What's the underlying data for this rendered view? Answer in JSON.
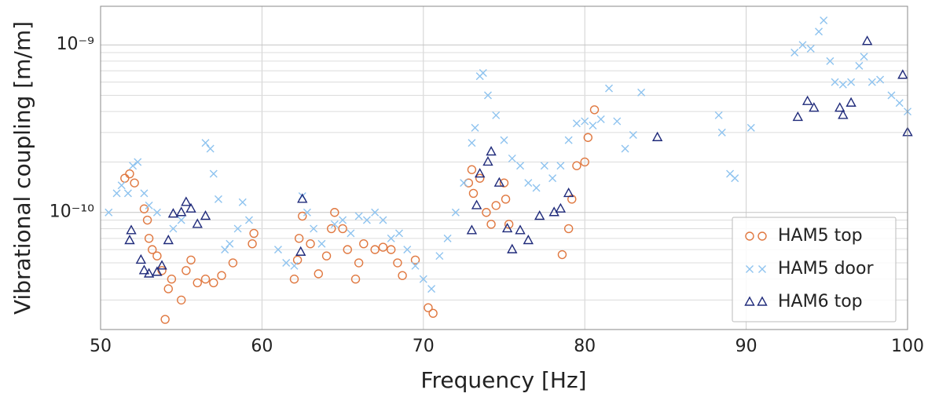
{
  "chart_data": {
    "type": "scatter",
    "xlabel": "Frequency [Hz]",
    "ylabel": "Vibrational coupling [m/m]",
    "xlim": [
      50,
      100
    ],
    "xticks": [
      50,
      60,
      70,
      80,
      90,
      100
    ],
    "ylim": [
      2e-11,
      1.7e-09
    ],
    "log_y": true,
    "yticks": [
      {
        "value": 1e-10,
        "label": "10⁻¹⁰"
      },
      {
        "value": 1e-09,
        "label": "10⁻⁹"
      }
    ],
    "yminorticks": [
      2e-11,
      3e-11,
      4e-11,
      5e-11,
      6e-11,
      7e-11,
      8e-11,
      9e-11,
      2e-10,
      3e-10,
      4e-10,
      5e-10,
      6e-10,
      7e-10,
      8e-10,
      9e-10
    ],
    "grid": true,
    "legend": "lower right",
    "series": [
      {
        "name": "HAM5 top",
        "color": "#e07840",
        "marker": "circle",
        "x": [
          51.5,
          51.8,
          52.1,
          52.7,
          52.9,
          53.0,
          53.2,
          53.5,
          53.8,
          54.0,
          54.2,
          54.4,
          55.0,
          55.3,
          55.6,
          56.0,
          56.5,
          57.0,
          57.5,
          58.2,
          59.4,
          59.5,
          62.0,
          62.2,
          62.3,
          62.5,
          63.0,
          63.5,
          64.0,
          64.3,
          64.5,
          65.0,
          65.3,
          65.8,
          66.0,
          66.3,
          67.0,
          67.5,
          68.0,
          68.4,
          68.7,
          69.5,
          70.3,
          70.6,
          72.8,
          73.0,
          73.1,
          73.5,
          73.9,
          74.2,
          74.5,
          75.0,
          75.1,
          75.3,
          78.6,
          79.0,
          79.2,
          79.5,
          80.0,
          80.2,
          80.6
        ],
        "values": [
          1.6e-10,
          1.7e-10,
          1.5e-10,
          1.05e-10,
          9e-11,
          7e-11,
          6e-11,
          5.5e-11,
          4.5e-11,
          2.3e-11,
          3.5e-11,
          4e-11,
          3e-11,
          4.5e-11,
          5.2e-11,
          3.8e-11,
          4e-11,
          3.8e-11,
          4.2e-11,
          5e-11,
          6.5e-11,
          7.5e-11,
          4e-11,
          5.2e-11,
          7e-11,
          9.5e-11,
          6.5e-11,
          4.3e-11,
          5.5e-11,
          8e-11,
          1e-10,
          8e-11,
          6e-11,
          4e-11,
          5e-11,
          6.5e-11,
          6e-11,
          6.2e-11,
          6e-11,
          5e-11,
          4.2e-11,
          5.2e-11,
          2.7e-11,
          2.5e-11,
          1.5e-10,
          1.8e-10,
          1.3e-10,
          1.6e-10,
          1e-10,
          8.5e-11,
          1.1e-10,
          1.5e-10,
          1.2e-10,
          8.5e-11,
          5.6e-11,
          8e-11,
          1.2e-10,
          1.9e-10,
          2e-10,
          2.8e-10,
          4.1e-10
        ]
      },
      {
        "name": "HAM5 door",
        "color": "#8ec3ef",
        "marker": "x",
        "x": [
          50.5,
          51.0,
          51.3,
          51.7,
          52.0,
          52.3,
          52.7,
          53.0,
          53.5,
          54.5,
          55.0,
          56.5,
          56.8,
          57.0,
          57.3,
          57.7,
          58.0,
          58.5,
          58.8,
          59.2,
          61.0,
          61.5,
          62.0,
          62.5,
          62.8,
          63.2,
          63.7,
          64.5,
          65.0,
          65.5,
          66.0,
          66.5,
          67.0,
          67.5,
          68.0,
          68.5,
          69.0,
          69.5,
          70.0,
          70.5,
          71.0,
          71.5,
          72.0,
          72.5,
          73.0,
          73.2,
          73.5,
          73.7,
          74.0,
          74.5,
          75.0,
          75.5,
          76.0,
          76.5,
          77.0,
          77.5,
          78.0,
          78.5,
          79.0,
          79.5,
          80.0,
          80.5,
          81.0,
          81.5,
          82.0,
          82.5,
          83.0,
          83.5,
          88.3,
          88.5,
          89.0,
          89.3,
          90.3,
          93.0,
          93.5,
          94.0,
          94.5,
          94.8,
          95.2,
          95.5,
          96.0,
          96.5,
          97.0,
          97.3,
          97.8,
          98.3,
          99.0,
          99.5,
          100.0
        ],
        "values": [
          1e-10,
          1.3e-10,
          1.45e-10,
          1.3e-10,
          1.9e-10,
          2e-10,
          1.3e-10,
          1.1e-10,
          1e-10,
          8e-11,
          9e-11,
          2.6e-10,
          2.4e-10,
          1.7e-10,
          1.2e-10,
          6e-11,
          6.5e-11,
          8e-11,
          1.15e-10,
          9e-11,
          6e-11,
          5e-11,
          4.8e-11,
          1.25e-10,
          1e-10,
          8e-11,
          6.5e-11,
          8.5e-11,
          9e-11,
          7.5e-11,
          9.5e-11,
          9e-11,
          1e-10,
          9e-11,
          7e-11,
          7.5e-11,
          6e-11,
          4.8e-11,
          4e-11,
          3.5e-11,
          5.5e-11,
          7e-11,
          1e-10,
          1.5e-10,
          2.6e-10,
          3.2e-10,
          6.5e-10,
          6.8e-10,
          5e-10,
          3.8e-10,
          2.7e-10,
          2.1e-10,
          1.9e-10,
          1.5e-10,
          1.4e-10,
          1.9e-10,
          1.6e-10,
          1.9e-10,
          2.7e-10,
          3.4e-10,
          3.5e-10,
          3.3e-10,
          3.6e-10,
          5.5e-10,
          3.5e-10,
          2.4e-10,
          2.9e-10,
          5.2e-10,
          3.8e-10,
          3e-10,
          1.7e-10,
          1.6e-10,
          3.2e-10,
          9e-10,
          1e-09,
          9.5e-10,
          1.2e-09,
          1.4e-09,
          8e-10,
          6e-10,
          5.8e-10,
          6e-10,
          7.5e-10,
          8.5e-10,
          6e-10,
          6.2e-10,
          5e-10,
          4.5e-10,
          4e-10
        ]
      },
      {
        "name": "HAM6 top",
        "color": "#1f2a7a",
        "marker": "triangle",
        "x": [
          51.8,
          51.9,
          52.5,
          52.7,
          53.0,
          53.5,
          53.8,
          54.2,
          54.5,
          55.0,
          55.3,
          55.6,
          56.0,
          56.5,
          62.4,
          62.5,
          73.0,
          73.3,
          73.5,
          74.0,
          74.2,
          74.7,
          75.2,
          75.5,
          76.0,
          76.5,
          77.2,
          78.1,
          78.5,
          79.0,
          84.5,
          93.2,
          93.8,
          94.2,
          95.8,
          96.0,
          96.5,
          97.5,
          99.7,
          100.0
        ],
        "values": [
          6.8e-11,
          7.8e-11,
          5.2e-11,
          4.5e-11,
          4.3e-11,
          4.4e-11,
          4.8e-11,
          6.8e-11,
          9.8e-11,
          1e-10,
          1.15e-10,
          1.05e-10,
          8.5e-11,
          9.5e-11,
          5.8e-11,
          1.2e-10,
          7.8e-11,
          1.1e-10,
          1.7e-10,
          2e-10,
          2.3e-10,
          1.5e-10,
          8e-11,
          6e-11,
          7.8e-11,
          6.8e-11,
          9.5e-11,
          1e-10,
          1.05e-10,
          1.3e-10,
          2.8e-10,
          3.7e-10,
          4.6e-10,
          4.2e-10,
          4.2e-10,
          3.8e-10,
          4.5e-10,
          1.05e-09,
          6.6e-10,
          3e-10
        ]
      }
    ]
  }
}
